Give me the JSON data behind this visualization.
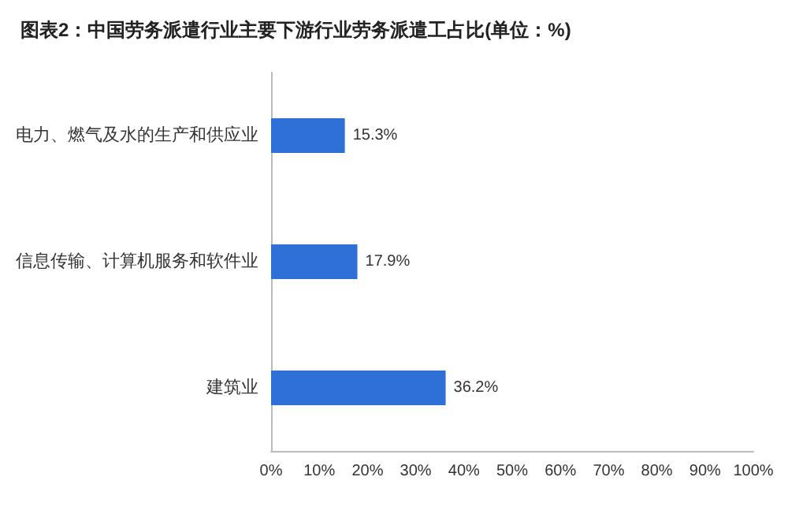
{
  "chart_data": {
    "type": "bar",
    "orientation": "horizontal",
    "title": "图表2：中国劳务派遣行业主要下游行业劳务派遣工占比(单位：%)",
    "categories": [
      "电力、燃气及水的生产和供应业",
      "信息传输、计算机服务和软件业",
      "建筑业"
    ],
    "values": [
      15.3,
      17.9,
      36.2
    ],
    "color": "#2e6fd8",
    "value_labels": [
      "15.3%",
      "17.9%",
      "36.2%"
    ],
    "xlim": [
      0,
      100
    ],
    "xticks": [
      {
        "value": 0,
        "label": "0%"
      },
      {
        "value": 10,
        "label": "10%"
      },
      {
        "value": 20,
        "label": "20%"
      },
      {
        "value": 30,
        "label": "30%"
      },
      {
        "value": 40,
        "label": "40%"
      },
      {
        "value": 50,
        "label": "50%"
      },
      {
        "value": 60,
        "label": "60%"
      },
      {
        "value": 70,
        "label": "70%"
      },
      {
        "value": 80,
        "label": "80%"
      },
      {
        "value": 90,
        "label": "90%"
      },
      {
        "value": 100,
        "label": "100%"
      }
    ],
    "grid": false
  }
}
